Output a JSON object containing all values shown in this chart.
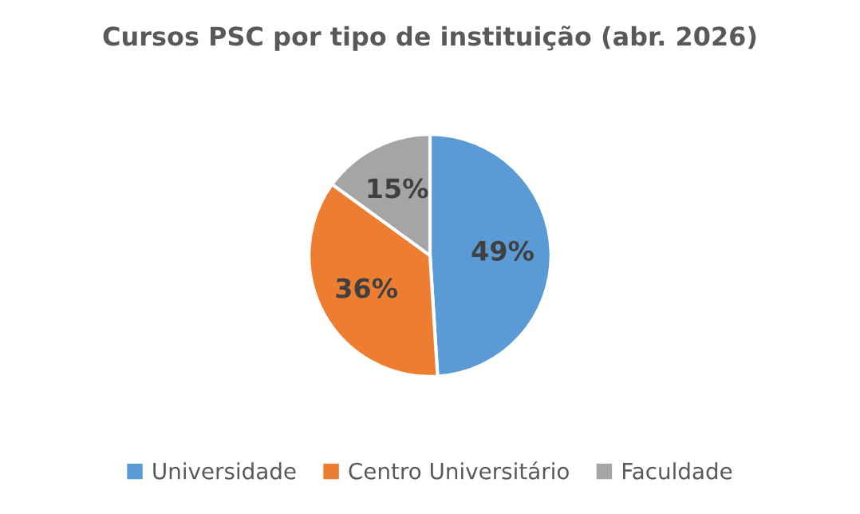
{
  "chart_data": {
    "type": "pie",
    "title": "Cursos PSC por tipo de instituição (abr. 2026)",
    "categories": [
      "Universidade",
      "Centro Universitário",
      "Faculdade"
    ],
    "values": [
      49,
      36,
      15
    ],
    "colors": [
      "#5b9bd5",
      "#ed7d31",
      "#a5a5a5"
    ],
    "value_labels": [
      "49%",
      "36%",
      "15%"
    ],
    "legend": "bottom"
  }
}
